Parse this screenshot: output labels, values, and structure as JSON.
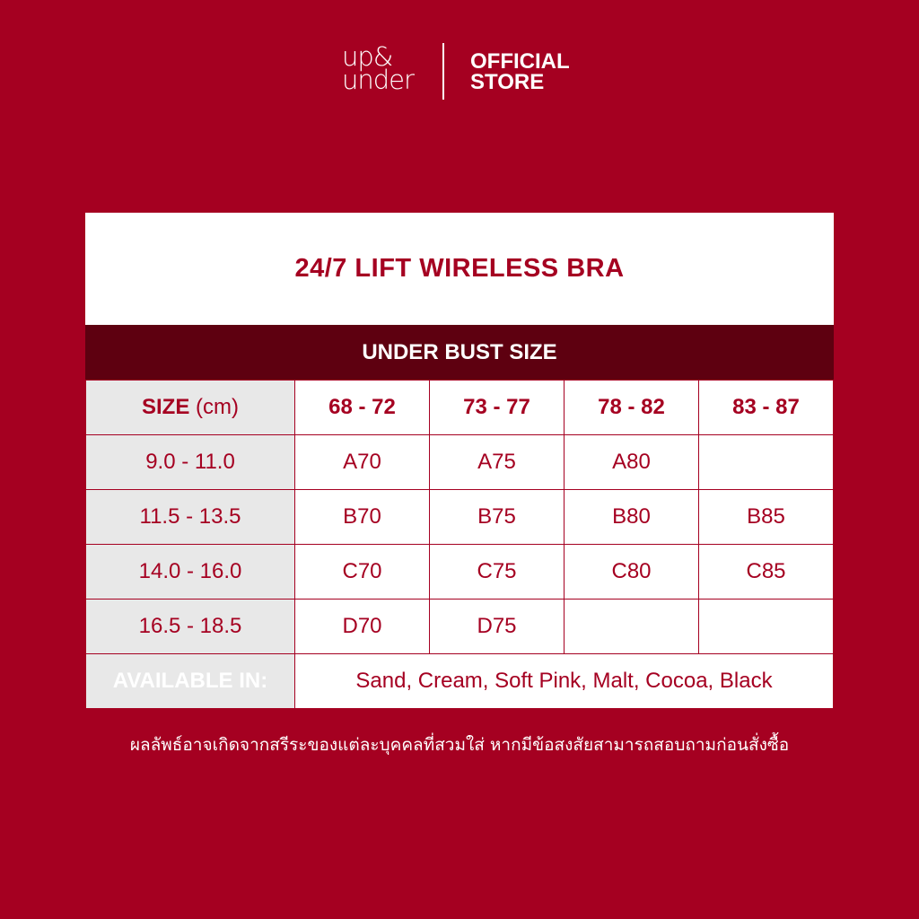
{
  "header": {
    "logo_text": [
      "up&",
      "under"
    ],
    "store_label": [
      "OFFICIAL",
      "STORE"
    ]
  },
  "chart": {
    "title": "24/7 LIFT WIRELESS BRA",
    "group_header": "UNDER BUST SIZE",
    "size_label": "SIZE",
    "size_unit": "(cm)",
    "columns": [
      "68 - 72",
      "73 - 77",
      "78 - 82",
      "83 - 87"
    ],
    "rows": [
      {
        "size": "9.0 - 11.0",
        "cells": [
          "A70",
          "A75",
          "A80",
          ""
        ]
      },
      {
        "size": "11.5 - 13.5",
        "cells": [
          "B70",
          "B75",
          "B80",
          "B85"
        ]
      },
      {
        "size": "14.0 - 16.0",
        "cells": [
          "C70",
          "C75",
          "C80",
          "C85"
        ]
      },
      {
        "size": "16.5 - 18.5",
        "cells": [
          "D70",
          "D75",
          "",
          ""
        ]
      }
    ],
    "available_label": "AVAILABLE IN:",
    "available_colors": "Sand, Cream, Soft Pink, Malt, Cocoa, Black"
  },
  "note": "ผลลัพธ์อาจเกิดจากสรีระของแต่ละบุคคลที่สวมใส่ หากมีข้อสงสัยสามารถสอบถามก่อนสั่งซื้อ",
  "colors": {
    "background": "#a50021",
    "dark": "#5e0010",
    "gray": "#e8e8e8"
  }
}
